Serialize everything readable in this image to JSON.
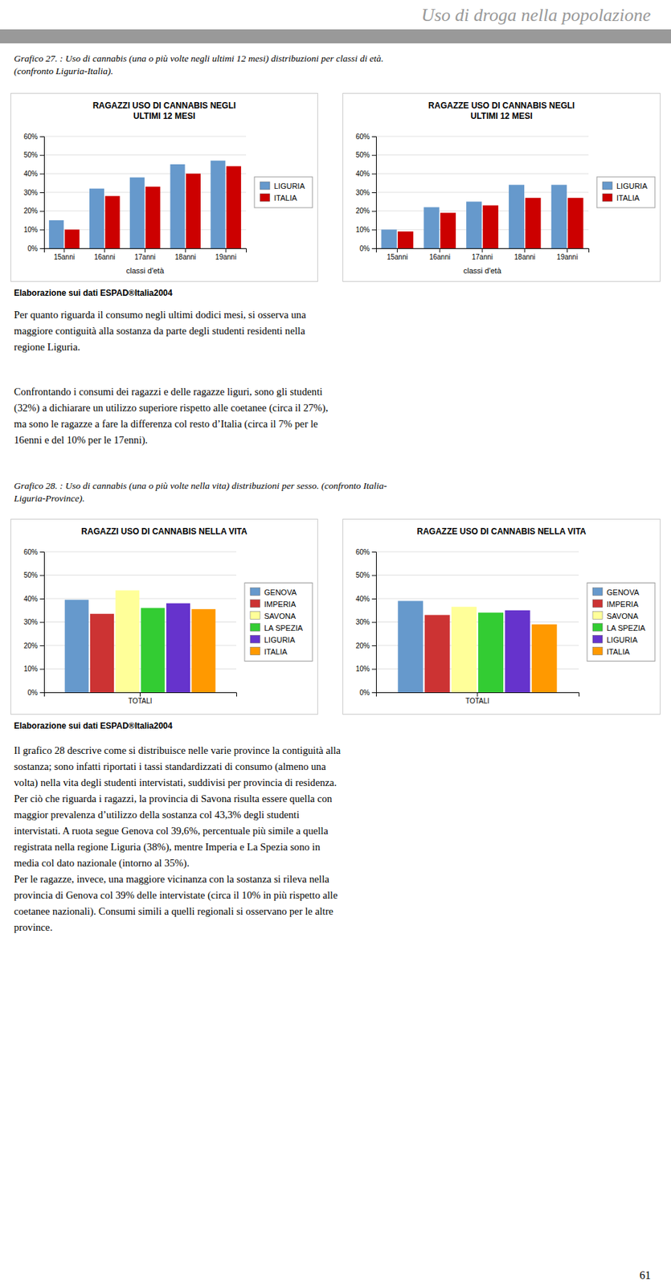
{
  "page_title": "Uso di droga nella popolazione",
  "page_number": "61",
  "captions": [
    "Grafico 27. : Uso di cannabis (una o più volte negli ultimi 12 mesi) distribuzioni per classi di età.\n(confronto Liguria-Italia).",
    "Grafico 28. : Uso di cannabis (una o più volte nella vita) distribuzioni per sesso. (confronto Italia-\nLiguria-Province)."
  ],
  "source_note": "Elaborazione sui dati ESPAD®Italia2004",
  "paragraphs": [
    "Per quanto riguarda il consumo negli ultimi dodici mesi, si osserva una\nmaggiore contiguità alla sostanza da parte degli studenti residenti nella\nregione Liguria.",
    "Confrontando i consumi dei ragazzi e delle ragazze liguri, sono gli studenti\n(32%) a dichiarare un utilizzo superiore rispetto alle coetanee (circa il 27%),\nma sono le ragazze a fare la differenza col resto d’Italia (circa il 7% per le\n16enni e del 10% per le 17enni).",
    "Il grafico 28 descrive come si distribuisce nelle varie province la contiguità alla\nsostanza; sono infatti riportati i tassi standardizzati di consumo (almeno una\nvolta) nella vita degli studenti intervistati, suddivisi per provincia di residenza.\nPer ciò che riguarda i ragazzi, la provincia di Savona risulta essere quella con\nmaggior prevalenza d’utilizzo della sostanza col 43,3% degli studenti\nintervistati. A ruota segue Genova col 39,6%, percentuale più simile a quella\nregistrata nella regione Liguria (38%), mentre Imperia e La Spezia sono in\nmedia col dato nazionale (intorno al 35%).\nPer le ragazze, invece, una maggiore vicinanza con la sostanza si rileva nella\nprovincia di Genova col 39% delle intervistate (circa il 10% in più rispetto alle\ncoetanee nazionali). Consumi simili a quelli regionali si osservano per le altre\nprovince."
  ],
  "chart_data": [
    {
      "type": "bar",
      "title": "RAGAZZI USO DI CANNABIS NEGLI\nULTIMI 12 MESI",
      "categories": [
        "15anni",
        "16anni",
        "17anni",
        "18anni",
        "19anni"
      ],
      "xlabel": "classi d'età",
      "series": [
        {
          "name": "LIGURIA",
          "color": "#6699CC",
          "values": [
            15,
            32,
            38,
            45,
            47
          ]
        },
        {
          "name": "ITALIA",
          "color": "#CC0000",
          "values": [
            10,
            28,
            33,
            40,
            44
          ]
        }
      ],
      "ylim": [
        0,
        60
      ],
      "yticks": [
        {
          "value": 0,
          "label": "0%"
        },
        {
          "value": 10,
          "label": "10%"
        },
        {
          "value": 20,
          "label": "20%"
        },
        {
          "value": 30,
          "label": "30%"
        },
        {
          "value": 40,
          "label": "40%"
        },
        {
          "value": 50,
          "label": "50%"
        },
        {
          "value": 60,
          "label": "60%"
        }
      ],
      "grid": true,
      "legend": "right"
    },
    {
      "type": "bar",
      "title": "RAGAZZE USO DI CANNABIS NEGLI\nULTIMI 12 MESI",
      "categories": [
        "15anni",
        "16anni",
        "17anni",
        "18anni",
        "19anni"
      ],
      "xlabel": "classi d'età",
      "series": [
        {
          "name": "LIGURIA",
          "color": "#6699CC",
          "values": [
            10,
            22,
            25,
            34,
            34
          ]
        },
        {
          "name": "ITALIA",
          "color": "#CC0000",
          "values": [
            9,
            19,
            23,
            27,
            27
          ]
        }
      ],
      "ylim": [
        0,
        60
      ],
      "yticks": [
        {
          "value": 0,
          "label": "0%"
        },
        {
          "value": 10,
          "label": "10%"
        },
        {
          "value": 20,
          "label": "20%"
        },
        {
          "value": 30,
          "label": "30%"
        },
        {
          "value": 40,
          "label": "40%"
        },
        {
          "value": 50,
          "label": "50%"
        },
        {
          "value": 60,
          "label": "60%"
        }
      ],
      "grid": true,
      "legend": "right"
    },
    {
      "type": "bar",
      "title": "RAGAZZI USO DI CANNABIS NELLA VITA",
      "categories": [
        "TOTALI"
      ],
      "series": [
        {
          "name": "GENOVA",
          "color": "#6699CC",
          "values": [
            39.5
          ]
        },
        {
          "name": "IMPERIA",
          "color": "#CC3333",
          "values": [
            33.5
          ]
        },
        {
          "name": "SAVONA",
          "color": "#FFFF99",
          "values": [
            43.5
          ]
        },
        {
          "name": "LA SPEZIA",
          "color": "#33CC33",
          "values": [
            36
          ]
        },
        {
          "name": "LIGURIA",
          "color": "#6633CC",
          "values": [
            38
          ]
        },
        {
          "name": "ITALIA",
          "color": "#FF9900",
          "values": [
            35.5
          ]
        }
      ],
      "ylim": [
        0,
        60
      ],
      "yticks": [
        {
          "value": 0,
          "label": "0%"
        },
        {
          "value": 10,
          "label": "10%"
        },
        {
          "value": 20,
          "label": "20%"
        },
        {
          "value": 30,
          "label": "30%"
        },
        {
          "value": 40,
          "label": "40%"
        },
        {
          "value": 50,
          "label": "50%"
        },
        {
          "value": 60,
          "label": "60%"
        }
      ],
      "grid": true,
      "legend": "right"
    },
    {
      "type": "bar",
      "title": "RAGAZZE USO DI CANNABIS NELLA VITA",
      "categories": [
        "TOTALI"
      ],
      "series": [
        {
          "name": "GENOVA",
          "color": "#6699CC",
          "values": [
            39
          ]
        },
        {
          "name": "IMPERIA",
          "color": "#CC3333",
          "values": [
            33
          ]
        },
        {
          "name": "SAVONA",
          "color": "#FFFF99",
          "values": [
            36.5
          ]
        },
        {
          "name": "LA SPEZIA",
          "color": "#33CC33",
          "values": [
            34
          ]
        },
        {
          "name": "LIGURIA",
          "color": "#6633CC",
          "values": [
            35
          ]
        },
        {
          "name": "ITALIA",
          "color": "#FF9900",
          "values": [
            29
          ]
        }
      ],
      "ylim": [
        0,
        60
      ],
      "yticks": [
        {
          "value": 0,
          "label": "0%"
        },
        {
          "value": 10,
          "label": "10%"
        },
        {
          "value": 20,
          "label": "20%"
        },
        {
          "value": 30,
          "label": "30%"
        },
        {
          "value": 40,
          "label": "40%"
        },
        {
          "value": 50,
          "label": "50%"
        },
        {
          "value": 60,
          "label": "60%"
        }
      ],
      "grid": true,
      "legend": "right"
    }
  ]
}
